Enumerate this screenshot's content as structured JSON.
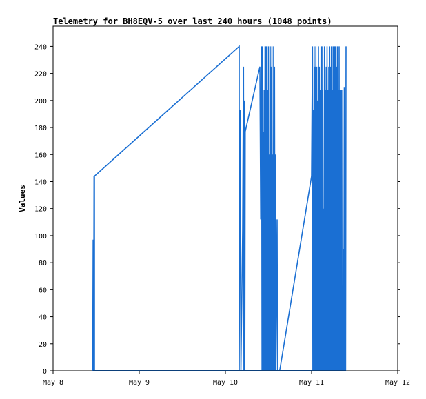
{
  "chart_data": {
    "type": "line",
    "title": "Telemetry for BH8EQV-5 over last 240 hours (1048 points)",
    "xlabel": "",
    "ylabel": "Values",
    "xlim": [
      0,
      4
    ],
    "ylim": [
      0,
      255
    ],
    "x_ticks": [
      {
        "value": 0,
        "label": "May 8"
      },
      {
        "value": 1,
        "label": "May 9"
      },
      {
        "value": 2,
        "label": "May 10"
      },
      {
        "value": 3,
        "label": "May 11"
      },
      {
        "value": 4,
        "label": "May 12"
      }
    ],
    "y_ticks": [
      0,
      20,
      40,
      60,
      80,
      100,
      120,
      140,
      160,
      180,
      200,
      220,
      240
    ],
    "grid": false,
    "line_color": "#1a6fd3",
    "series": [
      {
        "name": "",
        "points": [
          [
            0.46,
            0
          ],
          [
            0.465,
            97
          ],
          [
            0.47,
            0
          ],
          [
            0.475,
            144
          ],
          [
            0.48,
            0
          ],
          [
            0.48,
            144
          ],
          [
            2.16,
            240
          ],
          [
            2.16,
            0
          ],
          [
            2.17,
            193
          ],
          [
            2.18,
            0
          ],
          [
            2.2,
            104
          ],
          [
            2.21,
            225
          ],
          [
            2.215,
            0
          ],
          [
            2.22,
            200
          ],
          [
            2.225,
            0
          ],
          [
            2.23,
            177
          ],
          [
            2.4,
            225
          ],
          [
            2.41,
            112
          ],
          [
            2.42,
            240
          ],
          [
            2.425,
            0
          ],
          [
            2.43,
            240
          ],
          [
            2.435,
            0
          ],
          [
            2.44,
            177
          ],
          [
            2.445,
            0
          ],
          [
            2.45,
            208
          ],
          [
            2.455,
            0
          ],
          [
            2.46,
            240
          ],
          [
            2.465,
            0
          ],
          [
            2.47,
            240
          ],
          [
            2.475,
            0
          ],
          [
            2.48,
            240
          ],
          [
            2.485,
            0
          ],
          [
            2.49,
            208
          ],
          [
            2.495,
            0
          ],
          [
            2.5,
            240
          ],
          [
            2.505,
            0
          ],
          [
            2.51,
            160
          ],
          [
            2.515,
            0
          ],
          [
            2.52,
            240
          ],
          [
            2.525,
            0
          ],
          [
            2.53,
            225
          ],
          [
            2.535,
            0
          ],
          [
            2.54,
            240
          ],
          [
            2.545,
            0
          ],
          [
            2.55,
            160
          ],
          [
            2.555,
            0
          ],
          [
            2.56,
            240
          ],
          [
            2.565,
            0
          ],
          [
            2.57,
            225
          ],
          [
            2.575,
            0
          ],
          [
            2.58,
            160
          ],
          [
            2.585,
            0
          ],
          [
            2.6,
            112
          ],
          [
            2.605,
            0
          ],
          [
            2.63,
            0
          ],
          [
            3.0,
            144
          ],
          [
            3.01,
            240
          ],
          [
            3.015,
            0
          ],
          [
            3.02,
            193
          ],
          [
            3.025,
            0
          ],
          [
            3.03,
            240
          ],
          [
            3.035,
            0
          ],
          [
            3.04,
            225
          ],
          [
            3.045,
            0
          ],
          [
            3.05,
            240
          ],
          [
            3.055,
            0
          ],
          [
            3.06,
            225
          ],
          [
            3.065,
            0
          ],
          [
            3.07,
            200
          ],
          [
            3.075,
            0
          ],
          [
            3.08,
            240
          ],
          [
            3.085,
            0
          ],
          [
            3.09,
            225
          ],
          [
            3.095,
            0
          ],
          [
            3.1,
            208
          ],
          [
            3.105,
            0
          ],
          [
            3.11,
            240
          ],
          [
            3.115,
            0
          ],
          [
            3.12,
            240
          ],
          [
            3.125,
            0
          ],
          [
            3.13,
            208
          ],
          [
            3.135,
            0
          ],
          [
            3.14,
            120
          ],
          [
            3.145,
            0
          ],
          [
            3.15,
            240
          ],
          [
            3.155,
            0
          ],
          [
            3.16,
            208
          ],
          [
            3.165,
            0
          ],
          [
            3.17,
            225
          ],
          [
            3.175,
            0
          ],
          [
            3.18,
            240
          ],
          [
            3.185,
            0
          ],
          [
            3.19,
            208
          ],
          [
            3.195,
            0
          ],
          [
            3.2,
            225
          ],
          [
            3.205,
            0
          ],
          [
            3.21,
            240
          ],
          [
            3.215,
            0
          ],
          [
            3.22,
            225
          ],
          [
            3.225,
            0
          ],
          [
            3.23,
            240
          ],
          [
            3.235,
            0
          ],
          [
            3.24,
            208
          ],
          [
            3.245,
            0
          ],
          [
            3.25,
            240
          ],
          [
            3.255,
            0
          ],
          [
            3.26,
            225
          ],
          [
            3.265,
            0
          ],
          [
            3.27,
            240
          ],
          [
            3.275,
            0
          ],
          [
            3.28,
            240
          ],
          [
            3.285,
            0
          ],
          [
            3.29,
            225
          ],
          [
            3.295,
            0
          ],
          [
            3.3,
            240
          ],
          [
            3.305,
            0
          ],
          [
            3.31,
            208
          ],
          [
            3.315,
            0
          ],
          [
            3.32,
            240
          ],
          [
            3.325,
            0
          ],
          [
            3.33,
            208
          ],
          [
            3.335,
            0
          ],
          [
            3.34,
            193
          ],
          [
            3.345,
            0
          ],
          [
            3.35,
            208
          ],
          [
            3.355,
            0
          ],
          [
            3.36,
            30
          ],
          [
            3.365,
            0
          ],
          [
            3.37,
            90
          ],
          [
            3.375,
            0
          ],
          [
            3.38,
            210
          ],
          [
            3.385,
            0
          ],
          [
            3.39,
            150
          ],
          [
            3.395,
            0
          ],
          [
            3.4,
            240
          ]
        ]
      },
      {
        "name": "",
        "points": [
          [
            0.46,
            0
          ],
          [
            3.4,
            0
          ]
        ]
      }
    ]
  }
}
